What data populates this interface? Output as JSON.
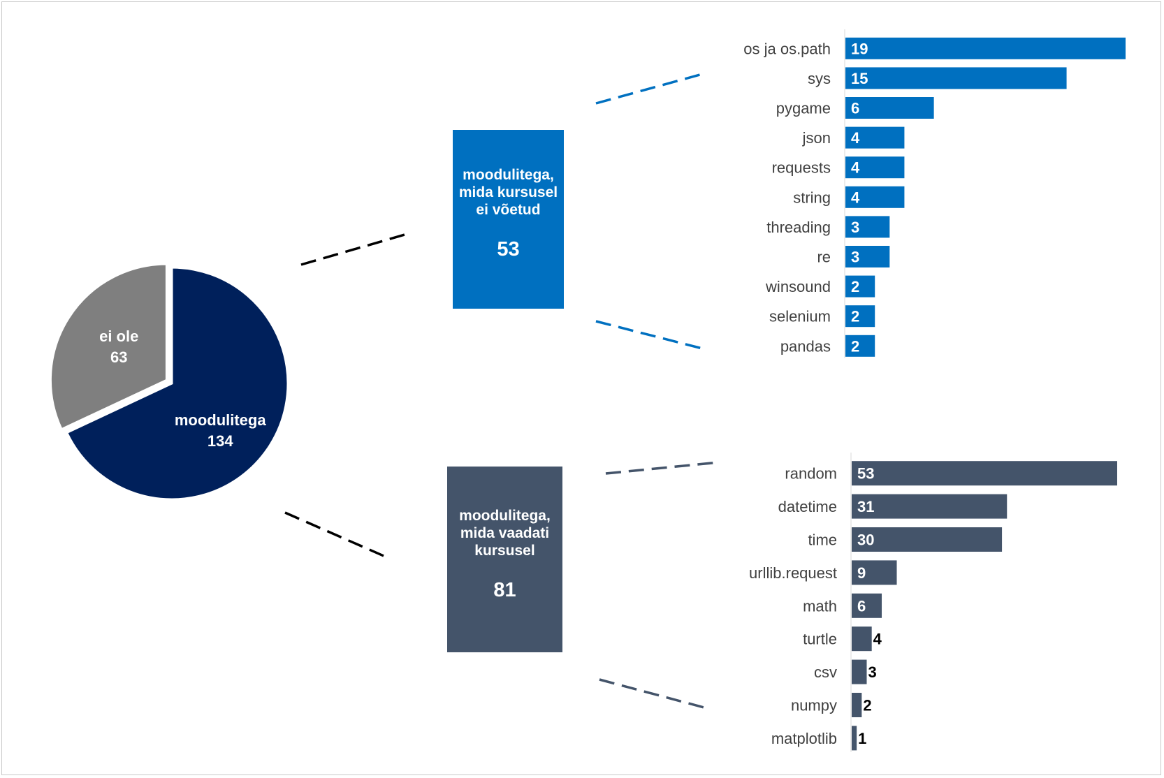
{
  "colors": {
    "navy": "#00205b",
    "gray": "#7f7f7f",
    "blue": "#0070c0",
    "slate": "#44546a",
    "text": "#404040",
    "dark_dash": "#000000"
  },
  "chart_data": [
    {
      "type": "pie",
      "slices": [
        {
          "label": "moodulitega",
          "value": 134,
          "color": "#00205b"
        },
        {
          "label": "ei ole",
          "value": 63,
          "color": "#7f7f7f"
        }
      ]
    },
    {
      "type": "bar",
      "orientation": "horizontal",
      "group_label": "moodulitega, mida kursusel ei võetud",
      "group_value": 53,
      "color": "#0070c0",
      "categories": [
        "os ja os.path",
        "sys",
        "pygame",
        "json",
        "requests",
        "string",
        "threading",
        "re",
        "winsound",
        "selenium",
        "pandas"
      ],
      "values": [
        19,
        15,
        6,
        4,
        4,
        4,
        3,
        3,
        2,
        2,
        2
      ]
    },
    {
      "type": "bar",
      "orientation": "horizontal",
      "group_label": "moodulitega, mida vaadati kursusel",
      "group_value": 81,
      "color": "#44546a",
      "categories": [
        "random",
        "datetime",
        "time",
        "urllib.request",
        "math",
        "turtle",
        "csv",
        "numpy",
        "matplotlib"
      ],
      "values": [
        53,
        31,
        30,
        9,
        6,
        4,
        3,
        2,
        1
      ]
    }
  ]
}
